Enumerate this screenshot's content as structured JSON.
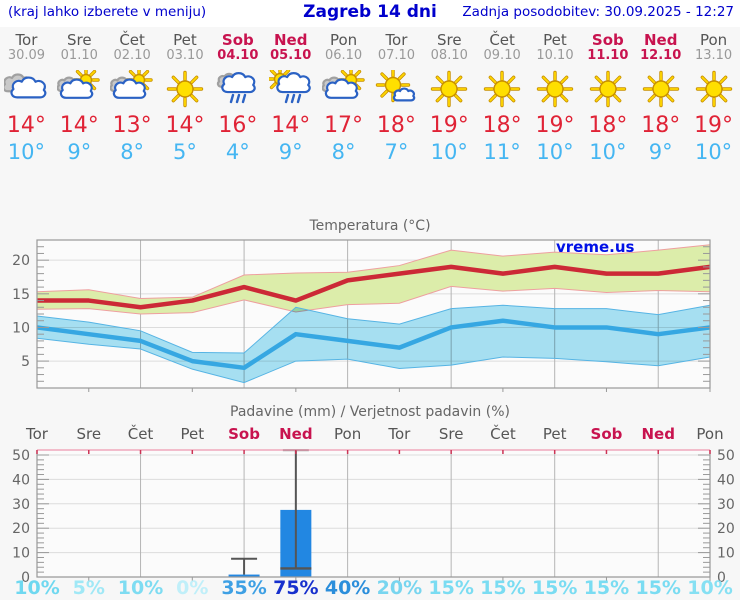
{
  "header": {
    "left_note": "(kraj lahko izberete v meniju)",
    "title": "Zagreb 14 dni",
    "updated": "Zadnja posodobitev: 30.09.2025 - 12:27"
  },
  "watermark": "vreme.us",
  "forecast": {
    "days": [
      {
        "name": "Tor",
        "date": "30.09",
        "weekend": false,
        "icon": "cloudy",
        "high": "14°",
        "low": "10°"
      },
      {
        "name": "Sre",
        "date": "01.10",
        "weekend": false,
        "icon": "partly-sunny",
        "high": "14°",
        "low": "9°"
      },
      {
        "name": "Čet",
        "date": "02.10",
        "weekend": false,
        "icon": "partly-sunny",
        "high": "13°",
        "low": "8°"
      },
      {
        "name": "Pet",
        "date": "03.10",
        "weekend": false,
        "icon": "sunny",
        "high": "14°",
        "low": "5°"
      },
      {
        "name": "Sob",
        "date": "04.10",
        "weekend": true,
        "icon": "rain",
        "high": "16°",
        "low": "4°"
      },
      {
        "name": "Ned",
        "date": "05.10",
        "weekend": true,
        "icon": "sun-rain",
        "high": "14°",
        "low": "9°"
      },
      {
        "name": "Pon",
        "date": "06.10",
        "weekend": false,
        "icon": "partly-sunny",
        "high": "17°",
        "low": "8°"
      },
      {
        "name": "Tor",
        "date": "07.10",
        "weekend": false,
        "icon": "mostly-sunny",
        "high": "18°",
        "low": "7°"
      },
      {
        "name": "Sre",
        "date": "08.10",
        "weekend": false,
        "icon": "sunny",
        "high": "19°",
        "low": "10°"
      },
      {
        "name": "Čet",
        "date": "09.10",
        "weekend": false,
        "icon": "sunny",
        "high": "18°",
        "low": "11°"
      },
      {
        "name": "Pet",
        "date": "10.10",
        "weekend": false,
        "icon": "sunny",
        "high": "19°",
        "low": "10°"
      },
      {
        "name": "Sob",
        "date": "11.10",
        "weekend": true,
        "icon": "sunny",
        "high": "18°",
        "low": "10°"
      },
      {
        "name": "Ned",
        "date": "12.10",
        "weekend": true,
        "icon": "sunny",
        "high": "18°",
        "low": "9°"
      },
      {
        "name": "Pon",
        "date": "13.10",
        "weekend": false,
        "icon": "sunny",
        "high": "19°",
        "low": "10°"
      }
    ]
  },
  "chart_data": [
    {
      "type": "line",
      "title": "Temperatura (°C)",
      "categories": [
        "Tor",
        "Sre",
        "Čet",
        "Pet",
        "Sob",
        "Ned",
        "Pon",
        "Tor",
        "Sre",
        "Čet",
        "Pet",
        "Sob",
        "Ned",
        "Pon"
      ],
      "ylim": [
        1,
        23
      ],
      "yticks": [
        5,
        10,
        15,
        20
      ],
      "grid": true,
      "legend": "none",
      "series": [
        {
          "name": "high_temp",
          "values": [
            14,
            14,
            13,
            14,
            16,
            14,
            17,
            18,
            19,
            18,
            19,
            18,
            18,
            19
          ]
        },
        {
          "name": "low_temp",
          "values": [
            10,
            9,
            8,
            5,
            4,
            9,
            8,
            7,
            10,
            11,
            10,
            10,
            9,
            10
          ]
        },
        {
          "name": "high_band_upper",
          "values": [
            15.3,
            15.6,
            14.3,
            14.5,
            17.8,
            18.1,
            18.2,
            19.2,
            21.5,
            20.6,
            21.2,
            20.8,
            21.5,
            22.3
          ]
        },
        {
          "name": "high_band_lower",
          "values": [
            12.7,
            12.8,
            12.0,
            12.2,
            14.1,
            12.3,
            13.4,
            13.6,
            16.1,
            15.4,
            15.8,
            15.2,
            15.5,
            15.3
          ]
        },
        {
          "name": "low_band_upper",
          "values": [
            11.7,
            10.8,
            9.5,
            6.3,
            6.2,
            13.0,
            11.3,
            10.5,
            12.8,
            13.3,
            12.8,
            12.8,
            11.9,
            13.3
          ]
        },
        {
          "name": "low_band_lower",
          "values": [
            8.4,
            7.5,
            6.8,
            3.8,
            1.8,
            5.0,
            5.3,
            3.9,
            4.4,
            5.6,
            5.4,
            4.9,
            4.3,
            5.6
          ]
        }
      ]
    },
    {
      "type": "bar",
      "title": "Padavine (mm) / Verjetnost padavin (%)",
      "categories": [
        "Tor",
        "Sre",
        "Čet",
        "Pet",
        "Sob",
        "Ned",
        "Pon",
        "Tor",
        "Sre",
        "Čet",
        "Pet",
        "Sob",
        "Ned",
        "Pon"
      ],
      "ylim": [
        0,
        52
      ],
      "yticks": [
        0,
        10,
        20,
        30,
        40,
        50
      ],
      "values_mm": [
        0,
        0,
        0,
        0,
        1,
        27.5,
        0,
        0,
        0,
        0,
        0,
        0,
        0,
        0
      ],
      "whisker_low": [
        null,
        null,
        null,
        null,
        1,
        3.5,
        null,
        null,
        null,
        null,
        null,
        null,
        null,
        null
      ],
      "whisker_high": [
        null,
        null,
        null,
        null,
        7.5,
        52,
        null,
        null,
        null,
        null,
        null,
        null,
        null,
        null
      ],
      "median_mm": [
        null,
        null,
        null,
        null,
        null,
        3.5,
        null,
        null,
        null,
        null,
        null,
        null,
        null,
        null
      ],
      "probabilities": [
        "10%",
        "5%",
        "10%",
        "0%",
        "35%",
        "75%",
        "40%",
        "20%",
        "15%",
        "15%",
        "15%",
        "15%",
        "15%",
        "10%"
      ],
      "prob_colors": [
        "#6fd8f0",
        "#a0e8f6",
        "#7edcf2",
        "#c0eff9",
        "#3ea0e4",
        "#1730cd",
        "#2b8edb",
        "#78d5ef",
        "#7adcf2",
        "#7adcf2",
        "#7adcf2",
        "#7adcf2",
        "#7adcf2",
        "#86e0f3"
      ]
    }
  ],
  "colors": {
    "page-bg": "#f7f7f7",
    "header-bg": "#ffffff",
    "header-blue": "#0000cc",
    "day-gray": "#555555",
    "date-gray": "#999999",
    "weekend-red": "#c8134f",
    "temp-high-red": "#e02336",
    "temp-low-blue": "#45b6f2",
    "title-gray": "#666666",
    "axis-gray": "#666666",
    "grid-light": "#dcdcdc",
    "grid-vert": "#b5b5b5",
    "frame-gray": "#999999",
    "plot-bg": "#fbfbfb",
    "red-line": "#cc2936",
    "red-band": "#dcedaa",
    "red-band-edge": "#ee9f9f",
    "blue-line": "#36a7e2",
    "blue-band": "#a9e3f5",
    "blue-band-edge": "#56b4e4",
    "bar-blue": "#2287e2",
    "whisker-gray": "#555555",
    "watermark-blue": "#0010e6",
    "precip-top-line": "#f0a8bc",
    "precip-tick-red": "#cc3355"
  }
}
